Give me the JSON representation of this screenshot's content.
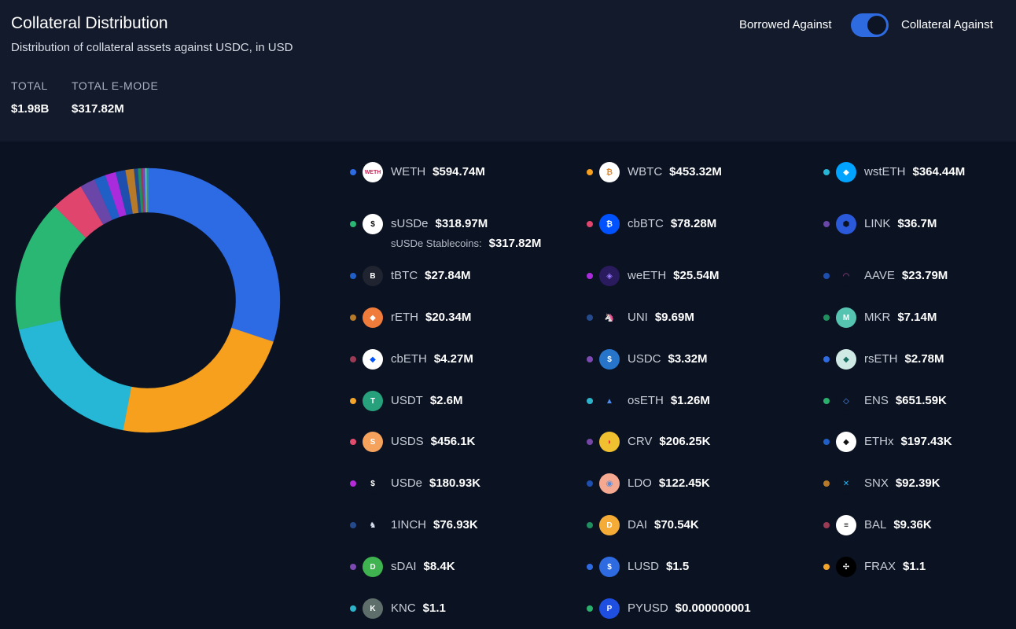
{
  "header": {
    "title": "Collateral Distribution",
    "subtitle": "Distribution of collateral assets against USDC, in USD",
    "total_label": "TOTAL",
    "total_value": "$1.98B",
    "emode_label": "TOTAL E-MODE",
    "emode_value": "$317.82M",
    "toggle_left": "Borrowed Against",
    "toggle_right": "Collateral Against"
  },
  "colors": {
    "accent": "#2f6be0",
    "background": "#0b1222",
    "header_background": "#121a2c"
  },
  "chart_data": {
    "type": "pie",
    "title": "Collateral Distribution",
    "subtitle": "Distribution of collateral assets against USDC, in USD",
    "unit": "USD",
    "series": [
      {
        "name": "WETH",
        "label": "$594.74M",
        "value": 594740000,
        "color": "#2d6be4",
        "icon": "WETH",
        "icon_bg": "#ffffff",
        "icon_fg": "#d02058"
      },
      {
        "name": "WBTC",
        "label": "$453.32M",
        "value": 453320000,
        "color": "#f7a01e",
        "icon": "₿",
        "icon_bg": "#ffffff",
        "icon_fg": "#e08a2a"
      },
      {
        "name": "wstETH",
        "label": "$364.44M",
        "value": 364440000,
        "color": "#26b7d6",
        "icon": "◆",
        "icon_bg": "#00a3ff",
        "icon_fg": "#ffffff"
      },
      {
        "name": "sUSDe",
        "label": "$318.97M",
        "value": 318970000,
        "color": "#2ab673",
        "icon": "$",
        "icon_bg": "#ffffff",
        "icon_fg": "#111111",
        "sub_label": "sUSDe Stablecoins:",
        "sub_value": "$317.82M"
      },
      {
        "name": "cbBTC",
        "label": "$78.28M",
        "value": 78280000,
        "color": "#e0456e",
        "icon": "₿",
        "icon_bg": "#0052ff",
        "icon_fg": "#ffffff"
      },
      {
        "name": "LINK",
        "label": "$36.7M",
        "value": 36700000,
        "color": "#6a46a8",
        "icon": "⬢",
        "icon_bg": "#2a5ada",
        "icon_fg": "#0b1222"
      },
      {
        "name": "tBTC",
        "label": "$27.84M",
        "value": 27840000,
        "color": "#1f5fc6",
        "icon": "B",
        "icon_bg": "#1f2430",
        "icon_fg": "#ffffff"
      },
      {
        "name": "weETH",
        "label": "$25.54M",
        "value": 25540000,
        "color": "#a92bdb",
        "icon": "◈",
        "icon_bg": "#2a1a5e",
        "icon_fg": "#9a7bff"
      },
      {
        "name": "AAVE",
        "label": "$23.79M",
        "value": 23790000,
        "color": "#1e4fae",
        "icon": "◠",
        "icon_bg": "#0b1222",
        "icon_fg": "#b6509e"
      },
      {
        "name": "rETH",
        "label": "$20.34M",
        "value": 20340000,
        "color": "#b67a28",
        "icon": "◆",
        "icon_bg": "#f07c3c",
        "icon_fg": "#ffffff"
      },
      {
        "name": "UNI",
        "label": "$9.69M",
        "value": 9690000,
        "color": "#244a8c",
        "icon": "🦄",
        "icon_bg": "#0b1222",
        "icon_fg": "#ff007a"
      },
      {
        "name": "MKR",
        "label": "$7.14M",
        "value": 7140000,
        "color": "#1f8f5f",
        "icon": "M",
        "icon_bg": "#55c4b0",
        "icon_fg": "#ffffff"
      },
      {
        "name": "cbETH",
        "label": "$4.27M",
        "value": 4270000,
        "color": "#9b3a54",
        "icon": "◆",
        "icon_bg": "#ffffff",
        "icon_fg": "#0052ff"
      },
      {
        "name": "USDC",
        "label": "$3.32M",
        "value": 3320000,
        "color": "#7c4ab0",
        "icon": "$",
        "icon_bg": "#2775ca",
        "icon_fg": "#ffffff"
      },
      {
        "name": "rsETH",
        "label": "$2.78M",
        "value": 2780000,
        "color": "#2f6be0",
        "icon": "◆",
        "icon_bg": "#cfe9e4",
        "icon_fg": "#176f63"
      },
      {
        "name": "USDT",
        "label": "$2.6M",
        "value": 2600000,
        "color": "#f3a52a",
        "icon": "T",
        "icon_bg": "#26a17b",
        "icon_fg": "#ffffff"
      },
      {
        "name": "osETH",
        "label": "$1.26M",
        "value": 1260000,
        "color": "#2cb3c9",
        "icon": "▲",
        "icon_bg": "#0b1222",
        "icon_fg": "#4d8df0"
      },
      {
        "name": "ENS",
        "label": "$651.59K",
        "value": 651590,
        "color": "#2ab06c",
        "icon": "◇",
        "icon_bg": "#0b1222",
        "icon_fg": "#5298ff"
      },
      {
        "name": "USDS",
        "label": "$456.1K",
        "value": 456100,
        "color": "#e24d6e",
        "icon": "S",
        "icon_bg": "#f5a35c",
        "icon_fg": "#ffffff"
      },
      {
        "name": "CRV",
        "label": "$206.25K",
        "value": 206250,
        "color": "#7546a6",
        "icon": "◗",
        "icon_bg": "#f0c030",
        "icon_fg": "#e8312c"
      },
      {
        "name": "ETHx",
        "label": "$197.43K",
        "value": 197430,
        "color": "#1f5fc6",
        "icon": "◆",
        "icon_bg": "#ffffff",
        "icon_fg": "#111111"
      },
      {
        "name": "USDe",
        "label": "$180.93K",
        "value": 180930,
        "color": "#b52bd8",
        "icon": "$",
        "icon_bg": "#0b1222",
        "icon_fg": "#ffffff"
      },
      {
        "name": "LDO",
        "label": "$122.45K",
        "value": 122450,
        "color": "#1e4fae",
        "icon": "◉",
        "icon_bg": "#f5a990",
        "icon_fg": "#5a8bd6"
      },
      {
        "name": "SNX",
        "label": "$92.39K",
        "value": 92390,
        "color": "#b67a28",
        "icon": "✕",
        "icon_bg": "#0b1222",
        "icon_fg": "#1fb8f0"
      },
      {
        "name": "1INCH",
        "label": "$76.93K",
        "value": 76930,
        "color": "#244a8c",
        "icon": "♞",
        "icon_bg": "#0b1222",
        "icon_fg": "#dfe7f7"
      },
      {
        "name": "DAI",
        "label": "$70.54K",
        "value": 70540,
        "color": "#1f8f5f",
        "icon": "D",
        "icon_bg": "#f5ac37",
        "icon_fg": "#ffffff"
      },
      {
        "name": "BAL",
        "label": "$9.36K",
        "value": 9360,
        "color": "#9b3a54",
        "icon": "≡",
        "icon_bg": "#ffffff",
        "icon_fg": "#111111"
      },
      {
        "name": "sDAI",
        "label": "$8.4K",
        "value": 8400,
        "color": "#7c4ab0",
        "icon": "D",
        "icon_bg": "#3fb34f",
        "icon_fg": "#ffffff"
      },
      {
        "name": "LUSD",
        "label": "$1.5",
        "value": 1.5,
        "color": "#2f6be0",
        "icon": "$",
        "icon_bg": "#2f6be0",
        "icon_fg": "#ffffff"
      },
      {
        "name": "FRAX",
        "label": "$1.1",
        "value": 1.1,
        "color": "#f3a52a",
        "icon": "✣",
        "icon_bg": "#000000",
        "icon_fg": "#ffffff"
      },
      {
        "name": "KNC",
        "label": "$1.1",
        "value": 1.1,
        "color": "#2cb3c9",
        "icon": "K",
        "icon_bg": "#5e6e6a",
        "icon_fg": "#ffffff"
      },
      {
        "name": "PYUSD",
        "label": "$0.000000001",
        "value": 1e-09,
        "color": "#2ab06c",
        "icon": "P",
        "icon_bg": "#1e4fe0",
        "icon_fg": "#ffffff"
      }
    ]
  }
}
